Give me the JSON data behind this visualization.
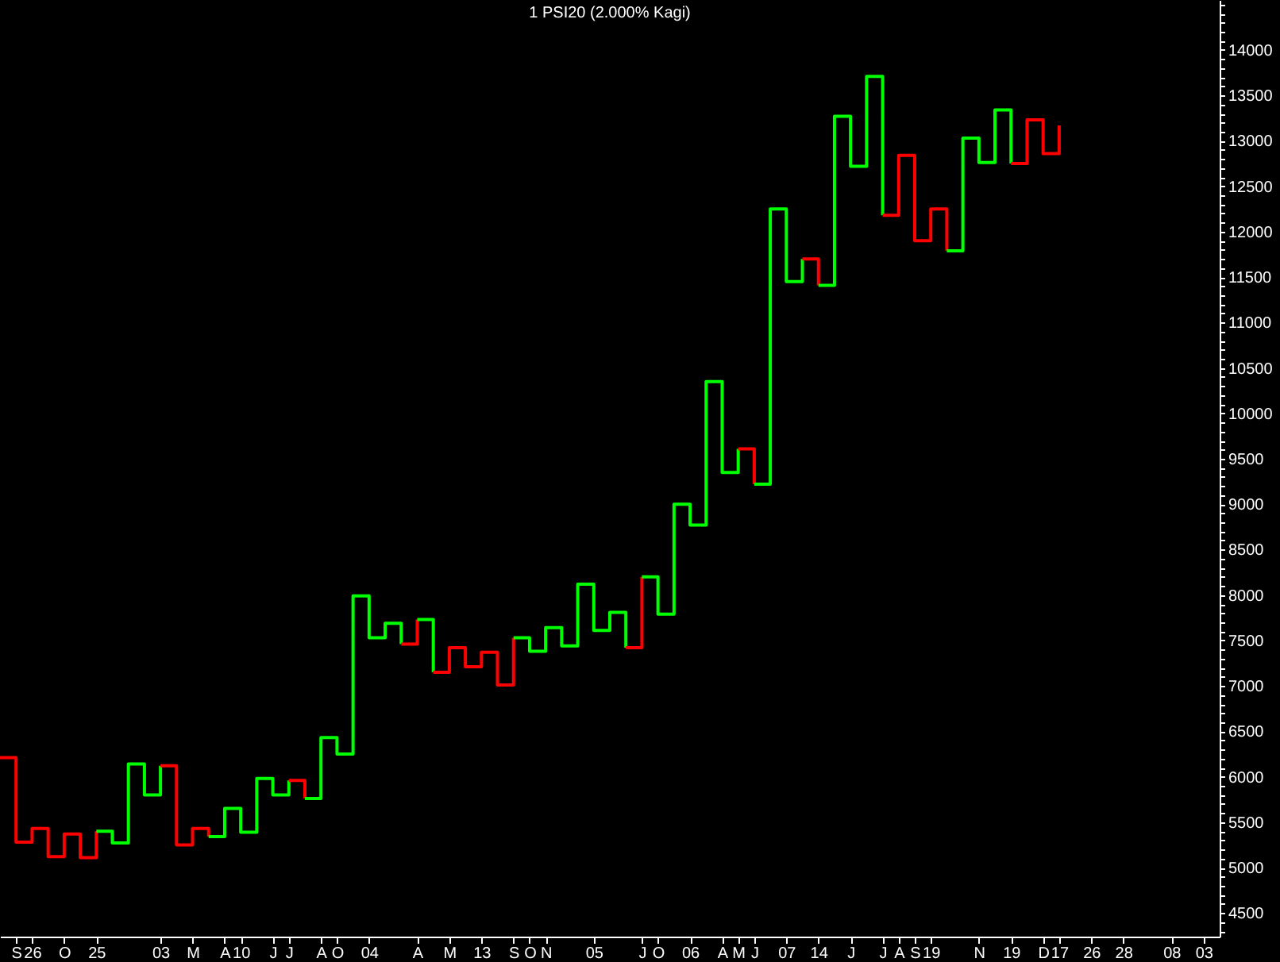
{
  "chart_data": {
    "type": "step",
    "title": "1 PSI20 (2.000% Kagi)",
    "categories": [
      null,
      "S",
      "26",
      null,
      "O",
      null,
      "25",
      null,
      null,
      null,
      "03",
      null,
      "M",
      null,
      "A",
      "10",
      null,
      "J",
      "J",
      null,
      "A",
      "O",
      null,
      "04",
      null,
      null,
      "A",
      null,
      "M",
      null,
      "13",
      null,
      "S",
      "O",
      "N",
      null,
      null,
      "05",
      null,
      null,
      "J",
      "O",
      null,
      "06",
      null,
      "A",
      "M",
      "J",
      null,
      "07",
      null,
      "14",
      null,
      "J",
      null,
      "J",
      "A",
      "S",
      "19",
      null,
      null,
      "N",
      null,
      "19",
      null,
      "D",
      "17",
      null,
      "26",
      null,
      "28",
      null,
      null,
      "08",
      null,
      "03",
      null
    ],
    "ylim": [
      4240,
      14550
    ],
    "grid": false,
    "yticks": [
      {
        "value": 4300,
        "label": null
      },
      {
        "value": 4400,
        "label": null
      },
      4500,
      {
        "value": 4600,
        "label": null
      },
      {
        "value": 4700,
        "label": null
      },
      {
        "value": 4800,
        "label": null
      },
      {
        "value": 4900,
        "label": null
      },
      5000,
      {
        "value": 5100,
        "label": null
      },
      {
        "value": 5200,
        "label": null
      },
      {
        "value": 5300,
        "label": null
      },
      {
        "value": 5400,
        "label": null
      },
      5500,
      {
        "value": 5600,
        "label": null
      },
      {
        "value": 5700,
        "label": null
      },
      {
        "value": 5800,
        "label": null
      },
      {
        "value": 5900,
        "label": null
      },
      6000,
      {
        "value": 6100,
        "label": null
      },
      {
        "value": 6200,
        "label": null
      },
      {
        "value": 6300,
        "label": null
      },
      {
        "value": 6400,
        "label": null
      },
      6500,
      {
        "value": 6600,
        "label": null
      },
      {
        "value": 6700,
        "label": null
      },
      {
        "value": 6800,
        "label": null
      },
      {
        "value": 6900,
        "label": null
      },
      7000,
      {
        "value": 7100,
        "label": null
      },
      {
        "value": 7200,
        "label": null
      },
      {
        "value": 7300,
        "label": null
      },
      {
        "value": 7400,
        "label": null
      },
      7500,
      {
        "value": 7600,
        "label": null
      },
      {
        "value": 7700,
        "label": null
      },
      {
        "value": 7800,
        "label": null
      },
      {
        "value": 7900,
        "label": null
      },
      8000,
      {
        "value": 8100,
        "label": null
      },
      {
        "value": 8200,
        "label": null
      },
      {
        "value": 8300,
        "label": null
      },
      {
        "value": 8400,
        "label": null
      },
      8500,
      {
        "value": 8600,
        "label": null
      },
      {
        "value": 8700,
        "label": null
      },
      {
        "value": 8800,
        "label": null
      },
      {
        "value": 8900,
        "label": null
      },
      9000,
      {
        "value": 9100,
        "label": null
      },
      {
        "value": 9200,
        "label": null
      },
      {
        "value": 9300,
        "label": null
      },
      {
        "value": 9400,
        "label": null
      },
      9500,
      {
        "value": 9600,
        "label": null
      },
      {
        "value": 9700,
        "label": null
      },
      {
        "value": 9800,
        "label": null
      },
      {
        "value": 9900,
        "label": null
      },
      10000,
      {
        "value": 10100,
        "label": null
      },
      {
        "value": 10200,
        "label": null
      },
      {
        "value": 10300,
        "label": null
      },
      {
        "value": 10400,
        "label": null
      },
      10500,
      {
        "value": 10600,
        "label": null
      },
      {
        "value": 10700,
        "label": null
      },
      {
        "value": 10800,
        "label": null
      },
      {
        "value": 10900,
        "label": null
      },
      11000,
      {
        "value": 11100,
        "label": null
      },
      {
        "value": 11200,
        "label": null
      },
      {
        "value": 11300,
        "label": null
      },
      {
        "value": 11400,
        "label": null
      },
      11500,
      {
        "value": 11600,
        "label": null
      },
      {
        "value": 11700,
        "label": null
      },
      {
        "value": 11800,
        "label": null
      },
      {
        "value": 11900,
        "label": null
      },
      12000,
      {
        "value": 12100,
        "label": null
      },
      {
        "value": 12200,
        "label": null
      },
      {
        "value": 12300,
        "label": null
      },
      {
        "value": 12400,
        "label": null
      },
      12500,
      {
        "value": 12600,
        "label": null
      },
      {
        "value": 12700,
        "label": null
      },
      {
        "value": 12800,
        "label": null
      },
      {
        "value": 12900,
        "label": null
      },
      13000,
      {
        "value": 13100,
        "label": null
      },
      {
        "value": 13200,
        "label": null
      },
      {
        "value": 13300,
        "label": null
      },
      {
        "value": 13400,
        "label": null
      },
      13500,
      {
        "value": 13600,
        "label": null
      },
      {
        "value": 13700,
        "label": null
      },
      {
        "value": 13800,
        "label": null
      },
      {
        "value": 13900,
        "label": null
      },
      14000,
      {
        "value": 14100,
        "label": null
      },
      {
        "value": 14200,
        "label": null
      },
      {
        "value": 14300,
        "label": null
      },
      {
        "value": 14400,
        "label": null
      },
      {
        "value": 14500,
        "label": null
      }
    ],
    "series": [
      {
        "color": "#ff0000",
        "values": [
          6210,
          5280,
          5430,
          5120,
          5370,
          5110,
          5400,
          null,
          null,
          null,
          null,
          null,
          null,
          null,
          null,
          null,
          null,
          null,
          null,
          null,
          null,
          null,
          null,
          null,
          null,
          null,
          null,
          null,
          null,
          null,
          null,
          null,
          null,
          null,
          null,
          null,
          null,
          null,
          null,
          null,
          null,
          null,
          null,
          null,
          null,
          null,
          null,
          null,
          null,
          null,
          null,
          null,
          null,
          null,
          null,
          null,
          null,
          null,
          null,
          null,
          null,
          null,
          null,
          null,
          null,
          null,
          null,
          null,
          null,
          null,
          null,
          null,
          null,
          null,
          null,
          null,
          null
        ]
      },
      {
        "color": "#00ff00",
        "values": [
          null,
          null,
          null,
          null,
          null,
          null,
          5400,
          5270,
          6140,
          5800,
          6120,
          null,
          null,
          null,
          null,
          null,
          null,
          null,
          null,
          null,
          null,
          null,
          null,
          null,
          null,
          null,
          null,
          null,
          null,
          null,
          null,
          null,
          null,
          null,
          null,
          null,
          null,
          null,
          null,
          null,
          null,
          null,
          null,
          null,
          null,
          null,
          null,
          null,
          null,
          null,
          null,
          null,
          null,
          null,
          null,
          null,
          null,
          null,
          null,
          null,
          null,
          null,
          null,
          null,
          null,
          null,
          null,
          null,
          null,
          null,
          null,
          null,
          null,
          null,
          null,
          null,
          null
        ]
      },
      {
        "color": "#ff0000",
        "values": [
          null,
          null,
          null,
          null,
          null,
          null,
          null,
          null,
          null,
          null,
          6120,
          5250,
          5430,
          5340,
          null,
          null,
          null,
          null,
          null,
          null,
          null,
          null,
          null,
          null,
          null,
          null,
          null,
          null,
          null,
          null,
          null,
          null,
          null,
          null,
          null,
          null,
          null,
          null,
          null,
          null,
          null,
          null,
          null,
          null,
          null,
          null,
          null,
          null,
          null,
          null,
          null,
          null,
          null,
          null,
          null,
          null,
          null,
          null,
          null,
          null,
          null,
          null,
          null,
          null,
          null,
          null,
          null,
          null,
          null,
          null,
          null,
          null,
          null,
          null,
          null,
          null,
          null
        ]
      },
      {
        "color": "#00ff00",
        "values": [
          null,
          null,
          null,
          null,
          null,
          null,
          null,
          null,
          null,
          null,
          null,
          null,
          null,
          5340,
          5650,
          5390,
          5980,
          5800,
          5960,
          null,
          null,
          null,
          null,
          null,
          null,
          null,
          null,
          null,
          null,
          null,
          null,
          null,
          null,
          null,
          null,
          null,
          null,
          null,
          null,
          null,
          null,
          null,
          null,
          null,
          null,
          null,
          null,
          null,
          null,
          null,
          null,
          null,
          null,
          null,
          null,
          null,
          null,
          null,
          null,
          null,
          null,
          null,
          null,
          null,
          null,
          null,
          null,
          null,
          null,
          null,
          null,
          null,
          null,
          null,
          null,
          null,
          null
        ]
      },
      {
        "color": "#ff0000",
        "values": [
          null,
          null,
          null,
          null,
          null,
          null,
          null,
          null,
          null,
          null,
          null,
          null,
          null,
          null,
          null,
          null,
          null,
          null,
          5960,
          5760,
          null,
          null,
          null,
          null,
          null,
          null,
          null,
          null,
          null,
          null,
          null,
          null,
          null,
          null,
          null,
          null,
          null,
          null,
          null,
          null,
          null,
          null,
          null,
          null,
          null,
          null,
          null,
          null,
          null,
          null,
          null,
          null,
          null,
          null,
          null,
          null,
          null,
          null,
          null,
          null,
          null,
          null,
          null,
          null,
          null,
          null,
          null,
          null,
          null,
          null,
          null,
          null,
          null,
          null,
          null,
          null,
          null
        ]
      },
      {
        "color": "#00ff00",
        "values": [
          null,
          null,
          null,
          null,
          null,
          null,
          null,
          null,
          null,
          null,
          null,
          null,
          null,
          null,
          null,
          null,
          null,
          null,
          null,
          5760,
          6430,
          6250,
          7990,
          7530,
          7690,
          7460,
          null,
          null,
          null,
          null,
          null,
          null,
          null,
          null,
          null,
          null,
          null,
          null,
          null,
          null,
          null,
          null,
          null,
          null,
          null,
          null,
          null,
          null,
          null,
          null,
          null,
          null,
          null,
          null,
          null,
          null,
          null,
          null,
          null,
          null,
          null,
          null,
          null,
          null,
          null,
          null,
          null,
          null,
          null,
          null,
          null,
          null,
          null,
          null,
          null,
          null,
          null
        ]
      },
      {
        "color": "#ff0000",
        "values": [
          null,
          null,
          null,
          null,
          null,
          null,
          null,
          null,
          null,
          null,
          null,
          null,
          null,
          null,
          null,
          null,
          null,
          null,
          null,
          null,
          null,
          null,
          null,
          null,
          null,
          7460,
          7730,
          null,
          null,
          null,
          null,
          null,
          null,
          null,
          null,
          null,
          null,
          null,
          null,
          null,
          null,
          null,
          null,
          null,
          null,
          null,
          null,
          null,
          null,
          null,
          null,
          null,
          null,
          null,
          null,
          null,
          null,
          null,
          null,
          null,
          null,
          null,
          null,
          null,
          null,
          null,
          null,
          null,
          null,
          null,
          null,
          null,
          null,
          null,
          null,
          null,
          null
        ]
      },
      {
        "color": "#00ff00",
        "values": [
          null,
          null,
          null,
          null,
          null,
          null,
          null,
          null,
          null,
          null,
          null,
          null,
          null,
          null,
          null,
          null,
          null,
          null,
          null,
          null,
          null,
          null,
          null,
          null,
          null,
          null,
          7730,
          7150,
          null,
          null,
          null,
          null,
          null,
          null,
          null,
          null,
          null,
          null,
          null,
          null,
          null,
          null,
          null,
          null,
          null,
          null,
          null,
          null,
          null,
          null,
          null,
          null,
          null,
          null,
          null,
          null,
          null,
          null,
          null,
          null,
          null,
          null,
          null,
          null,
          null,
          null,
          null,
          null,
          null,
          null,
          null,
          null,
          null,
          null,
          null,
          null,
          null
        ]
      },
      {
        "color": "#ff0000",
        "values": [
          null,
          null,
          null,
          null,
          null,
          null,
          null,
          null,
          null,
          null,
          null,
          null,
          null,
          null,
          null,
          null,
          null,
          null,
          null,
          null,
          null,
          null,
          null,
          null,
          null,
          null,
          null,
          7150,
          7420,
          7210,
          7370,
          7010,
          7530,
          null,
          null,
          null,
          null,
          null,
          null,
          null,
          null,
          null,
          null,
          null,
          null,
          null,
          null,
          null,
          null,
          null,
          null,
          null,
          null,
          null,
          null,
          null,
          null,
          null,
          null,
          null,
          null,
          null,
          null,
          null,
          null,
          null,
          null,
          null,
          null,
          null,
          null,
          null,
          null,
          null,
          null,
          null,
          null
        ]
      },
      {
        "color": "#00ff00",
        "values": [
          null,
          null,
          null,
          null,
          null,
          null,
          null,
          null,
          null,
          null,
          null,
          null,
          null,
          null,
          null,
          null,
          null,
          null,
          null,
          null,
          null,
          null,
          null,
          null,
          null,
          null,
          null,
          null,
          null,
          null,
          null,
          null,
          7530,
          7380,
          7640,
          7440,
          8120,
          7610,
          7810,
          7420,
          null,
          null,
          null,
          null,
          null,
          null,
          null,
          null,
          null,
          null,
          null,
          null,
          null,
          null,
          null,
          null,
          null,
          null,
          null,
          null,
          null,
          null,
          null,
          null,
          null,
          null,
          null,
          null,
          null,
          null,
          null,
          null,
          null,
          null,
          null,
          null,
          null
        ]
      },
      {
        "color": "#ff0000",
        "values": [
          null,
          null,
          null,
          null,
          null,
          null,
          null,
          null,
          null,
          null,
          null,
          null,
          null,
          null,
          null,
          null,
          null,
          null,
          null,
          null,
          null,
          null,
          null,
          null,
          null,
          null,
          null,
          null,
          null,
          null,
          null,
          null,
          null,
          null,
          null,
          null,
          null,
          null,
          null,
          7420,
          8200,
          null,
          null,
          null,
          null,
          null,
          null,
          null,
          null,
          null,
          null,
          null,
          null,
          null,
          null,
          null,
          null,
          null,
          null,
          null,
          null,
          null,
          null,
          null,
          null,
          null,
          null,
          null,
          null,
          null,
          null,
          null,
          null,
          null,
          null,
          null,
          null
        ]
      },
      {
        "color": "#00ff00",
        "values": [
          null,
          null,
          null,
          null,
          null,
          null,
          null,
          null,
          null,
          null,
          null,
          null,
          null,
          null,
          null,
          null,
          null,
          null,
          null,
          null,
          null,
          null,
          null,
          null,
          null,
          null,
          null,
          null,
          null,
          null,
          null,
          null,
          null,
          null,
          null,
          null,
          null,
          null,
          null,
          null,
          8200,
          7790,
          9000,
          8770,
          10350,
          9350,
          9610,
          null,
          null,
          null,
          null,
          null,
          null,
          null,
          null,
          null,
          null,
          null,
          null,
          null,
          null,
          null,
          null,
          null,
          null,
          null,
          null,
          null,
          null,
          null,
          null,
          null,
          null,
          null,
          null,
          null,
          null
        ]
      },
      {
        "color": "#ff0000",
        "values": [
          null,
          null,
          null,
          null,
          null,
          null,
          null,
          null,
          null,
          null,
          null,
          null,
          null,
          null,
          null,
          null,
          null,
          null,
          null,
          null,
          null,
          null,
          null,
          null,
          null,
          null,
          null,
          null,
          null,
          null,
          null,
          null,
          null,
          null,
          null,
          null,
          null,
          null,
          null,
          null,
          null,
          null,
          null,
          null,
          null,
          null,
          9610,
          9220,
          null,
          null,
          null,
          null,
          null,
          null,
          null,
          null,
          null,
          null,
          null,
          null,
          null,
          null,
          null,
          null,
          null,
          null,
          null,
          null,
          null,
          null,
          null,
          null,
          null,
          null,
          null,
          null,
          null
        ]
      },
      {
        "color": "#00ff00",
        "values": [
          null,
          null,
          null,
          null,
          null,
          null,
          null,
          null,
          null,
          null,
          null,
          null,
          null,
          null,
          null,
          null,
          null,
          null,
          null,
          null,
          null,
          null,
          null,
          null,
          null,
          null,
          null,
          null,
          null,
          null,
          null,
          null,
          null,
          null,
          null,
          null,
          null,
          null,
          null,
          null,
          null,
          null,
          null,
          null,
          null,
          null,
          null,
          9220,
          12250,
          11450,
          11700,
          null,
          null,
          null,
          null,
          null,
          null,
          null,
          null,
          null,
          null,
          null,
          null,
          null,
          null,
          null,
          null,
          null,
          null,
          null,
          null,
          null,
          null,
          null,
          null,
          null,
          null
        ]
      },
      {
        "color": "#ff0000",
        "values": [
          null,
          null,
          null,
          null,
          null,
          null,
          null,
          null,
          null,
          null,
          null,
          null,
          null,
          null,
          null,
          null,
          null,
          null,
          null,
          null,
          null,
          null,
          null,
          null,
          null,
          null,
          null,
          null,
          null,
          null,
          null,
          null,
          null,
          null,
          null,
          null,
          null,
          null,
          null,
          null,
          null,
          null,
          null,
          null,
          null,
          null,
          null,
          null,
          null,
          null,
          11700,
          11410,
          null,
          null,
          null,
          null,
          null,
          null,
          null,
          null,
          null,
          null,
          null,
          null,
          null,
          null,
          null,
          null,
          null,
          null,
          null,
          null,
          null,
          null,
          null,
          null,
          null
        ]
      },
      {
        "color": "#00ff00",
        "values": [
          null,
          null,
          null,
          null,
          null,
          null,
          null,
          null,
          null,
          null,
          null,
          null,
          null,
          null,
          null,
          null,
          null,
          null,
          null,
          null,
          null,
          null,
          null,
          null,
          null,
          null,
          null,
          null,
          null,
          null,
          null,
          null,
          null,
          null,
          null,
          null,
          null,
          null,
          null,
          null,
          null,
          null,
          null,
          null,
          null,
          null,
          null,
          null,
          null,
          null,
          null,
          11410,
          13270,
          12720,
          13710,
          12180,
          null,
          null,
          null,
          null,
          null,
          null,
          null,
          null,
          null,
          null,
          null,
          null,
          null,
          null,
          null,
          null,
          null,
          null,
          null,
          null,
          null
        ]
      },
      {
        "color": "#ff0000",
        "values": [
          null,
          null,
          null,
          null,
          null,
          null,
          null,
          null,
          null,
          null,
          null,
          null,
          null,
          null,
          null,
          null,
          null,
          null,
          null,
          null,
          null,
          null,
          null,
          null,
          null,
          null,
          null,
          null,
          null,
          null,
          null,
          null,
          null,
          null,
          null,
          null,
          null,
          null,
          null,
          null,
          null,
          null,
          null,
          null,
          null,
          null,
          null,
          null,
          null,
          null,
          null,
          null,
          null,
          null,
          null,
          12180,
          12840,
          11900,
          12250,
          11790,
          null,
          null,
          null,
          null,
          null,
          null,
          null,
          null,
          null,
          null,
          null,
          null,
          null,
          null,
          null,
          null,
          null
        ]
      },
      {
        "color": "#00ff00",
        "values": [
          null,
          null,
          null,
          null,
          null,
          null,
          null,
          null,
          null,
          null,
          null,
          null,
          null,
          null,
          null,
          null,
          null,
          null,
          null,
          null,
          null,
          null,
          null,
          null,
          null,
          null,
          null,
          null,
          null,
          null,
          null,
          null,
          null,
          null,
          null,
          null,
          null,
          null,
          null,
          null,
          null,
          null,
          null,
          null,
          null,
          null,
          null,
          null,
          null,
          null,
          null,
          null,
          null,
          null,
          null,
          null,
          null,
          null,
          null,
          11790,
          13030,
          12760,
          13340,
          12750,
          null,
          null,
          null,
          null,
          null,
          null,
          null,
          null,
          null,
          null,
          null,
          null,
          null
        ]
      },
      {
        "color": "#ff0000",
        "values": [
          null,
          null,
          null,
          null,
          null,
          null,
          null,
          null,
          null,
          null,
          null,
          null,
          null,
          null,
          null,
          null,
          null,
          null,
          null,
          null,
          null,
          null,
          null,
          null,
          null,
          null,
          null,
          null,
          null,
          null,
          null,
          null,
          null,
          null,
          null,
          null,
          null,
          null,
          null,
          null,
          null,
          null,
          null,
          null,
          null,
          null,
          null,
          null,
          null,
          null,
          null,
          null,
          null,
          null,
          null,
          null,
          null,
          null,
          null,
          null,
          null,
          null,
          null,
          12750,
          13230,
          12860,
          13170,
          null,
          null,
          null,
          null,
          null,
          null,
          null,
          null,
          null,
          null
        ]
      }
    ]
  }
}
